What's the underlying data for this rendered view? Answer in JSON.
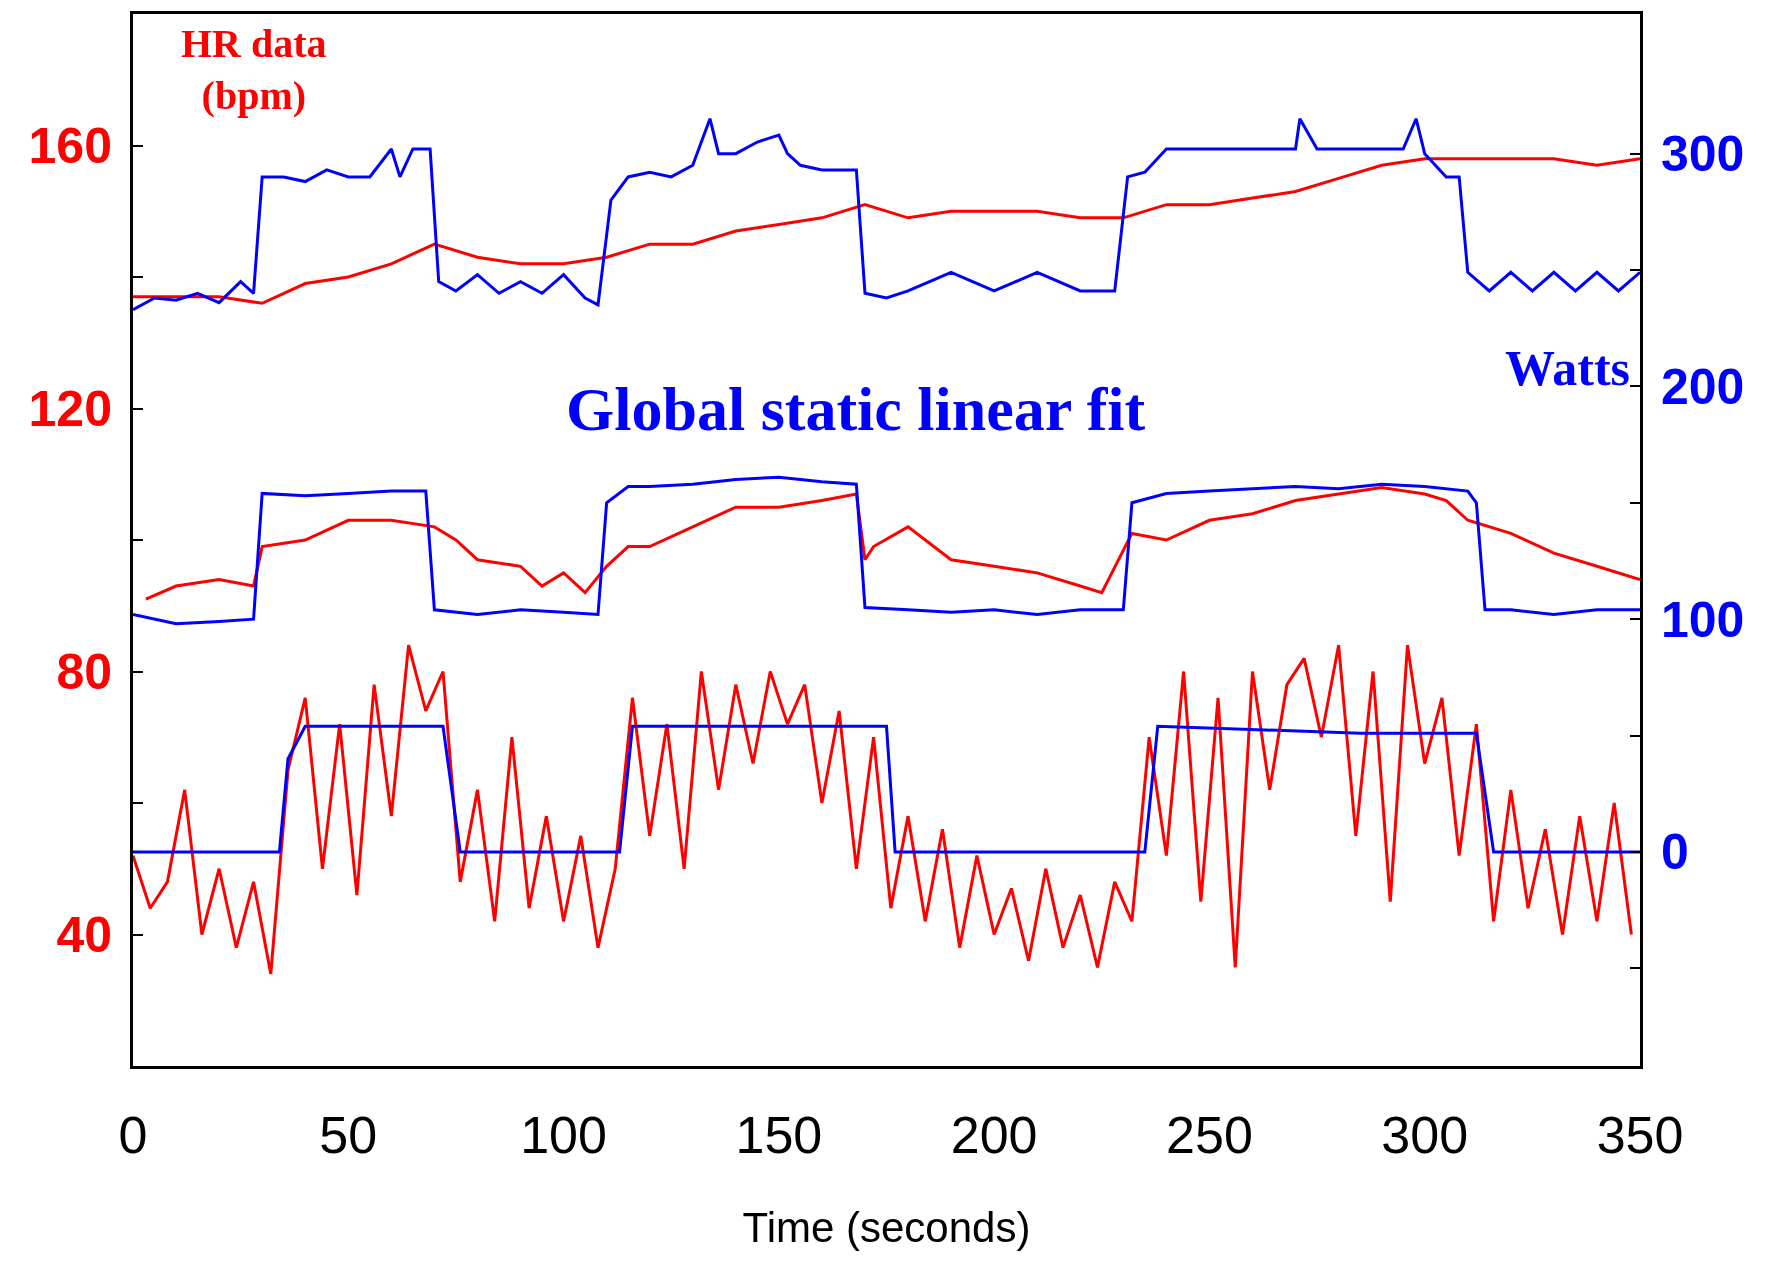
{
  "chart_data": {
    "type": "line",
    "xlabel": "Time (seconds)",
    "ylabel": "HR data (bpm)",
    "y2label": "Watts",
    "annotations": [
      "Global static linear fit"
    ],
    "xlim": [
      0,
      350
    ],
    "xticks": [
      0,
      50,
      100,
      150,
      200,
      250,
      300,
      350
    ],
    "ylim": [
      20,
      180
    ],
    "yticks": [
      40,
      {
        "value": 60,
        "label": null
      },
      80,
      {
        "value": 100,
        "label": null
      },
      120,
      {
        "value": 140,
        "label": null
      },
      160
    ],
    "y2lim": [
      -92,
      360
    ],
    "y2ticks": [
      {
        "value": -50,
        "label": null
      },
      0,
      {
        "value": 50,
        "label": null
      },
      100,
      {
        "value": 150,
        "label": null
      },
      200,
      {
        "value": 250,
        "label": null
      },
      300
    ],
    "grid": false,
    "marker": "none",
    "line_style": "solid",
    "series": [
      {
        "color": "#ff0000",
        "x": [
          0,
          10,
          20,
          30,
          40,
          50,
          60,
          70,
          80,
          90,
          100,
          110,
          120,
          130,
          140,
          150,
          160,
          170,
          180,
          190,
          200,
          210,
          220,
          230,
          240,
          250,
          260,
          270,
          280,
          290,
          300,
          310,
          320,
          330,
          340,
          350
        ],
        "values": [
          137,
          137,
          137,
          136,
          139,
          140,
          142,
          145,
          143,
          142,
          142,
          143,
          145,
          145,
          147,
          148,
          149,
          151,
          149,
          150,
          150,
          150,
          149,
          149,
          151,
          151,
          152,
          153,
          155,
          157,
          158,
          158,
          158,
          158,
          157,
          158
        ]
      },
      {
        "color": "#0000ff",
        "axis": "y2",
        "x": [
          0,
          5,
          10,
          15,
          20,
          25,
          28,
          30,
          35,
          40,
          45,
          50,
          55,
          60,
          62,
          65,
          69,
          71,
          75,
          80,
          85,
          90,
          95,
          100,
          105,
          108,
          111,
          115,
          120,
          125,
          130,
          134,
          136,
          140,
          145,
          150,
          152,
          155,
          160,
          168,
          170,
          175,
          180,
          190,
          200,
          210,
          220,
          228,
          231,
          235,
          240,
          245,
          250,
          260,
          270,
          271,
          275,
          285,
          295,
          298,
          300,
          305,
          308,
          310,
          315,
          320,
          325,
          330,
          335,
          340,
          345,
          350
        ],
        "values": [
          233,
          238,
          237,
          240,
          236,
          245,
          240,
          290,
          290,
          288,
          293,
          290,
          290,
          302,
          290,
          302,
          302,
          245,
          241,
          248,
          240,
          245,
          240,
          248,
          238,
          235,
          280,
          290,
          292,
          290,
          295,
          315,
          300,
          300,
          305,
          308,
          300,
          295,
          293,
          293,
          240,
          238,
          241,
          249,
          241,
          249,
          241,
          241,
          290,
          292,
          302,
          302,
          302,
          302,
          302,
          315,
          302,
          302,
          302,
          315,
          300,
          290,
          290,
          249,
          241,
          249,
          241,
          249,
          241,
          249,
          241,
          249
        ]
      },
      {
        "color": "#ff0000",
        "x": [
          3,
          10,
          20,
          28,
          30,
          40,
          50,
          60,
          70,
          75,
          80,
          90,
          95,
          100,
          105,
          110,
          115,
          120,
          130,
          140,
          150,
          160,
          168,
          170,
          172,
          180,
          190,
          200,
          210,
          220,
          225,
          232,
          240,
          250,
          260,
          270,
          280,
          290,
          300,
          305,
          310,
          320,
          330,
          340,
          350
        ],
        "values": [
          91,
          93,
          94,
          93,
          99,
          100,
          103,
          103,
          102,
          100,
          97,
          96,
          93,
          95,
          92,
          96,
          99,
          99,
          102,
          105,
          105,
          106,
          107,
          97,
          99,
          102,
          97,
          96,
          95,
          93,
          92,
          101,
          100,
          103,
          104,
          106,
          107,
          108,
          107,
          106,
          103,
          101,
          98,
          96,
          94
        ]
      },
      {
        "color": "#0000ff",
        "axis": "y2",
        "x": [
          0,
          10,
          20,
          28,
          30,
          40,
          50,
          60,
          68,
          70,
          80,
          90,
          100,
          108,
          110,
          115,
          120,
          130,
          140,
          150,
          160,
          168,
          170,
          180,
          190,
          200,
          210,
          220,
          230,
          232,
          240,
          250,
          260,
          270,
          280,
          290,
          300,
          310,
          312,
          314,
          320,
          330,
          340,
          350
        ],
        "values": [
          102,
          98,
          99,
          100,
          154,
          153,
          154,
          155,
          155,
          104,
          102,
          104,
          103,
          102,
          150,
          157,
          157,
          158,
          160,
          161,
          159,
          158,
          105,
          104,
          103,
          104,
          102,
          104,
          104,
          150,
          154,
          155,
          156,
          157,
          156,
          158,
          157,
          155,
          150,
          104,
          104,
          102,
          104,
          104
        ]
      },
      {
        "color": "#ff0000",
        "x": [
          0,
          4,
          8,
          12,
          16,
          20,
          24,
          28,
          32,
          36,
          40,
          44,
          48,
          52,
          56,
          60,
          64,
          68,
          72,
          76,
          80,
          84,
          88,
          92,
          96,
          100,
          104,
          108,
          112,
          116,
          120,
          124,
          128,
          132,
          136,
          140,
          144,
          148,
          152,
          156,
          160,
          164,
          168,
          172,
          176,
          180,
          184,
          188,
          192,
          196,
          200,
          204,
          208,
          212,
          216,
          220,
          224,
          228,
          232,
          236,
          240,
          244,
          248,
          252,
          256,
          260,
          264,
          268,
          272,
          276,
          280,
          284,
          288,
          292,
          296,
          300,
          304,
          308,
          312,
          316,
          320,
          324,
          328,
          332,
          336,
          340,
          344,
          348
        ],
        "values": [
          52,
          44,
          48,
          62,
          40,
          50,
          38,
          48,
          34,
          65,
          76,
          50,
          72,
          46,
          78,
          58,
          84,
          74,
          80,
          48,
          62,
          42,
          70,
          44,
          58,
          42,
          55,
          38,
          50,
          76,
          55,
          72,
          50,
          80,
          62,
          78,
          66,
          80,
          72,
          78,
          60,
          74,
          50,
          70,
          44,
          58,
          42,
          56,
          38,
          52,
          40,
          47,
          36,
          50,
          38,
          46,
          35,
          48,
          42,
          70,
          52,
          80,
          45,
          76,
          35,
          80,
          62,
          78,
          82,
          70,
          84,
          55,
          80,
          45,
          84,
          66,
          76,
          52,
          72,
          42,
          62,
          44,
          56,
          40,
          58,
          42,
          60,
          40
        ]
      },
      {
        "color": "#0000ff",
        "axis": "y2",
        "x": [
          0,
          34,
          36,
          40,
          72,
          76,
          113,
          116,
          175,
          177,
          235,
          238,
          285,
          312,
          316,
          350
        ],
        "values": [
          0,
          0,
          40,
          54,
          54,
          0,
          0,
          54,
          54,
          0,
          0,
          54,
          51,
          51,
          0,
          0
        ]
      }
    ]
  }
}
